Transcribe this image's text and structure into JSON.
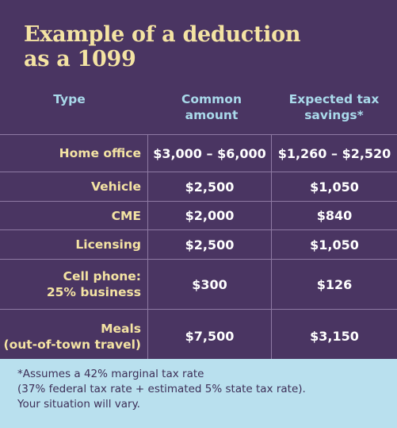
{
  "title_line1": "Example of a deduction",
  "title_line2": "as a 1099",
  "headers": {
    "type": "Type",
    "common_line1": "Common",
    "common_line2": "amount",
    "savings_line1": "Expected tax",
    "savings_line2": "savings*"
  },
  "rows": [
    {
      "type_line1": "Home office",
      "type_line2": "",
      "common": "$3,000 – $6,000",
      "savings": "$1,260 – $2,520"
    },
    {
      "type_line1": "Vehicle",
      "type_line2": "",
      "common": "$2,500",
      "savings": "$1,050"
    },
    {
      "type_line1": "CME",
      "type_line2": "",
      "common": "$2,000",
      "savings": "$840"
    },
    {
      "type_line1": "Licensing",
      "type_line2": "",
      "common": "$2,500",
      "savings": "$1,050"
    },
    {
      "type_line1": "Cell phone:",
      "type_line2": "25% business",
      "common": "$300",
      "savings": "$126"
    },
    {
      "type_line1": "Meals",
      "type_line2": "(out-of-town travel)",
      "common": "$7,500",
      "savings": "$3,150"
    }
  ],
  "footnote_line1": "*Assumes a 42% marginal tax rate",
  "footnote_line2": "(37% federal tax rate + estimated 5% state tax rate).",
  "footnote_line3": "Your situation will vary.",
  "colors": {
    "background": "#4a3562",
    "title": "#f4e3a3",
    "header": "#a9d9ea",
    "footer_bg": "#b9e0ee"
  }
}
